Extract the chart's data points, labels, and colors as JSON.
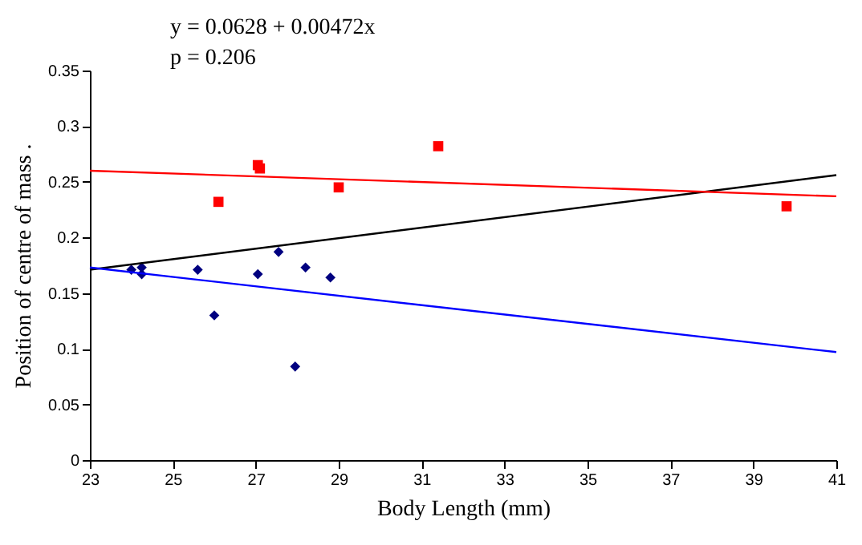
{
  "chart_data": {
    "type": "scatter",
    "xlabel": "Body Length (mm)",
    "ylabel": "Position of centre of mass .",
    "annotations": [
      "y = 0.0628 + 0.00472x",
      "p = 0.206"
    ],
    "xlim": [
      23,
      41
    ],
    "xticks": [
      23,
      25,
      27,
      29,
      31,
      33,
      35,
      37,
      39,
      41
    ],
    "ylim": [
      0,
      0.35
    ],
    "yticks": [
      0,
      0.05,
      0.1,
      0.15,
      0.2,
      0.25,
      0.3,
      0.35
    ],
    "series": [
      {
        "marker": "diamond",
        "color": "#000080",
        "x": [
          24.0,
          24.25,
          24.25,
          25.6,
          26.0,
          27.05,
          27.55,
          27.95,
          28.2,
          28.8
        ],
        "values": [
          0.171,
          0.173,
          0.167,
          0.171,
          0.13,
          0.167,
          0.187,
          0.084,
          0.173,
          0.164
        ]
      },
      {
        "marker": "square",
        "color": "#ff0000",
        "x": [
          26.1,
          27.05,
          27.1,
          29.0,
          31.4,
          39.8
        ],
        "values": [
          0.232,
          0.265,
          0.262,
          0.245,
          0.282,
          0.228
        ]
      },
      {
        "type": "line",
        "color": "#000000",
        "x": [
          23,
          41
        ],
        "values": [
          0.171,
          0.256
        ]
      },
      {
        "type": "line",
        "color": "#ff0000",
        "x": [
          23,
          41
        ],
        "values": [
          0.26,
          0.237
        ]
      },
      {
        "type": "line",
        "color": "#0000ff",
        "x": [
          23,
          41
        ],
        "values": [
          0.173,
          0.097
        ]
      }
    ]
  }
}
